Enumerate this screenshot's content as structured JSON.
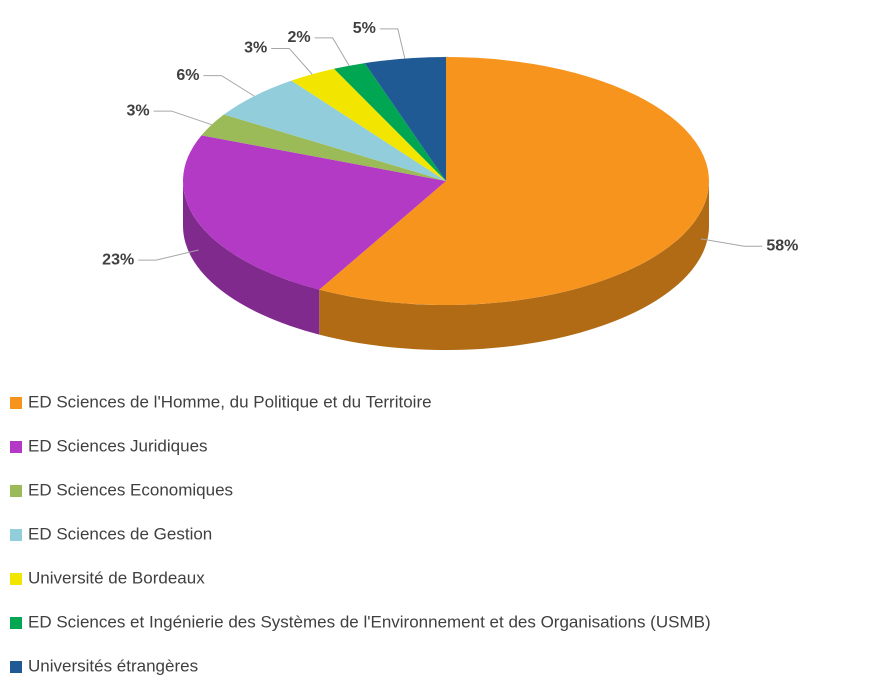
{
  "chart_data": {
    "type": "pie",
    "categories": [
      "ED Sciences de l'Homme, du Politique et du Territoire",
      "ED Sciences Juridiques",
      "ED Sciences Economiques",
      "ED Sciences de Gestion",
      "Université de Bordeaux",
      "ED Sciences et Ingénierie des Systèmes de l'Environnement et des Organisations (USMB)",
      "Universités étrangères"
    ],
    "values": [
      58,
      23,
      3,
      6,
      3,
      2,
      5
    ],
    "value_labels": [
      "58%",
      "23%",
      "3%",
      "6%",
      "3%",
      "2%",
      "5%"
    ],
    "colors": [
      "#f7941d",
      "#b23ac4",
      "#9bbb59",
      "#92cddc",
      "#f2e600",
      "#00a651",
      "#1f5a94"
    ],
    "legend": "bottom"
  }
}
